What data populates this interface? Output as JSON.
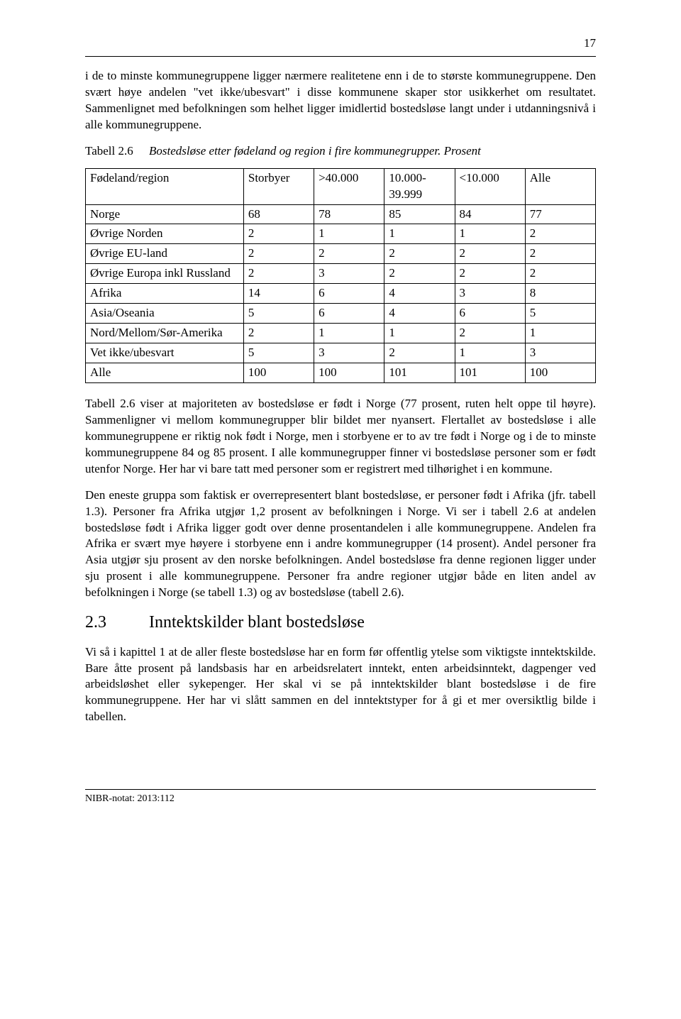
{
  "page_number": "17",
  "para1": "i de to minste kommunegruppene ligger nærmere realitetene enn i de to største kommunegruppene. Den svært høye andelen \"vet ikke/ubesvart\" i disse kommunene skaper stor usikkerhet om resultatet. Sammenlignet med befolkningen som helhet ligger imidlertid bostedsløse langt under i utdanningsnivå i alle kommunegruppene.",
  "table_caption_label": "Tabell 2.6",
  "table_caption_text": "Bostedsløse etter fødeland og region i fire kommunegrupper. Prosent",
  "table": {
    "columns": [
      "Fødeland/region",
      "Storbyer",
      ">40.000",
      "10.000-39.999",
      "<10.000",
      "Alle"
    ],
    "rows": [
      [
        "Norge",
        "68",
        "78",
        "85",
        "84",
        "77"
      ],
      [
        "Øvrige Norden",
        "2",
        "1",
        "1",
        "1",
        "2"
      ],
      [
        "Øvrige EU-land",
        "2",
        "2",
        "2",
        "2",
        "2"
      ],
      [
        "Øvrige Europa inkl Russland",
        "2",
        "3",
        "2",
        "2",
        "2"
      ],
      [
        "Afrika",
        "14",
        "6",
        "4",
        "3",
        "8"
      ],
      [
        "Asia/Oseania",
        "5",
        "6",
        "4",
        "6",
        "5"
      ],
      [
        "Nord/Mellom/Sør-Amerika",
        "2",
        "1",
        "1",
        "2",
        "1"
      ],
      [
        "Vet ikke/ubesvart",
        "5",
        "3",
        "2",
        "1",
        "3"
      ],
      [
        "Alle",
        "100",
        "100",
        "101",
        "101",
        "100"
      ]
    ],
    "border_color": "#000000",
    "background_color": "#ffffff",
    "font_size_pt": 12
  },
  "para2": "Tabell 2.6 viser at majoriteten av bostedsløse er født i Norge (77 prosent, ruten helt oppe til høyre). Sammenligner vi mellom kommunegrupper blir bildet mer nyansert. Flertallet av bostedsløse i alle kommunegruppene er riktig nok født i Norge, men i storbyene er to av tre født i Norge og i de to minste kommunegruppene 84 og 85 prosent. I alle kommunegrupper finner vi bostedsløse personer som er født utenfor Norge. Her har vi bare tatt med personer som er registrert med tilhørighet i en kommune.",
  "para3": "Den eneste gruppa som faktisk er overrepresentert blant bostedsløse, er personer født i Afrika (jfr. tabell 1.3). Personer fra Afrika utgjør 1,2 prosent av befolkningen i Norge. Vi ser i tabell 2.6 at andelen bostedsløse født i Afrika ligger godt over denne prosentandelen i alle kommunegruppene. Andelen fra Afrika er svært mye høyere i storbyene enn i andre kommunegrupper (14 prosent). Andel personer fra Asia utgjør sju prosent av den norske befolkningen. Andel bostedsløse fra denne regionen ligger under sju prosent i alle kommunegruppene. Personer fra andre regioner utgjør både en liten andel av befolkningen i Norge (se tabell 1.3) og av bostedsløse (tabell 2.6).",
  "section_number": "2.3",
  "section_title": "Inntektskilder blant bostedsløse",
  "para4": "Vi så i kapittel 1 at de aller fleste bostedsløse har en form før offentlig ytelse som viktigste inntektskilde. Bare åtte prosent på landsbasis har en arbeidsrelatert inntekt, enten arbeidsinntekt, dagpenger ved arbeidsløshet eller sykepenger. Her skal vi se på inntektskilder blant bostedsløse i de fire kommunegruppene. Her har vi slått sammen en del inntektstyper for å gi et mer oversiktlig bilde i tabellen.",
  "footer_text": "NIBR-notat: 2013:112",
  "colors": {
    "text": "#000000",
    "background": "#ffffff",
    "border": "#000000"
  }
}
